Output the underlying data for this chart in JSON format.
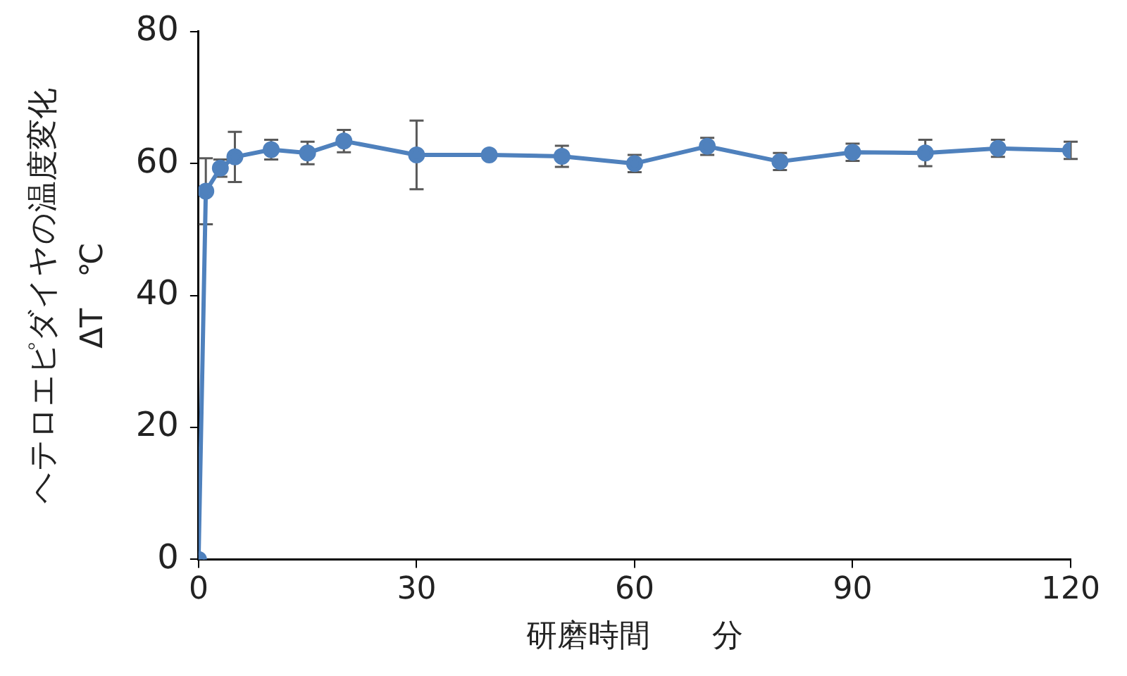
{
  "chart_data": {
    "type": "line",
    "xlabel": "研磨時間　　分",
    "ylabel": "ヘテロエピダイヤの温度変化\nΔT　℃",
    "x": [
      0,
      1,
      3,
      5,
      10,
      15,
      20,
      30,
      40,
      50,
      60,
      70,
      80,
      90,
      100,
      110,
      120
    ],
    "series": [
      {
        "color": "#4f81bd",
        "values": [
          0,
          55.8,
          59.3,
          61.0,
          62.1,
          61.6,
          63.4,
          61.3,
          61.3,
          61.1,
          60.0,
          62.6,
          60.3,
          61.7,
          61.6,
          62.3,
          62.0
        ],
        "errors": [
          null,
          5,
          1.3,
          3.8,
          1.5,
          1.7,
          1.7,
          5.2,
          null,
          1.6,
          1.3,
          1.3,
          1.3,
          1.3,
          2,
          1.3,
          1.3
        ]
      }
    ],
    "xlim": [
      0,
      120
    ],
    "xticks": [
      0,
      30,
      60,
      90,
      120
    ],
    "ylim": [
      0,
      80
    ],
    "yticks": [
      0,
      20,
      40,
      60,
      80
    ],
    "grid": false,
    "legend": false,
    "marker": "circle",
    "line_style": "solid"
  }
}
